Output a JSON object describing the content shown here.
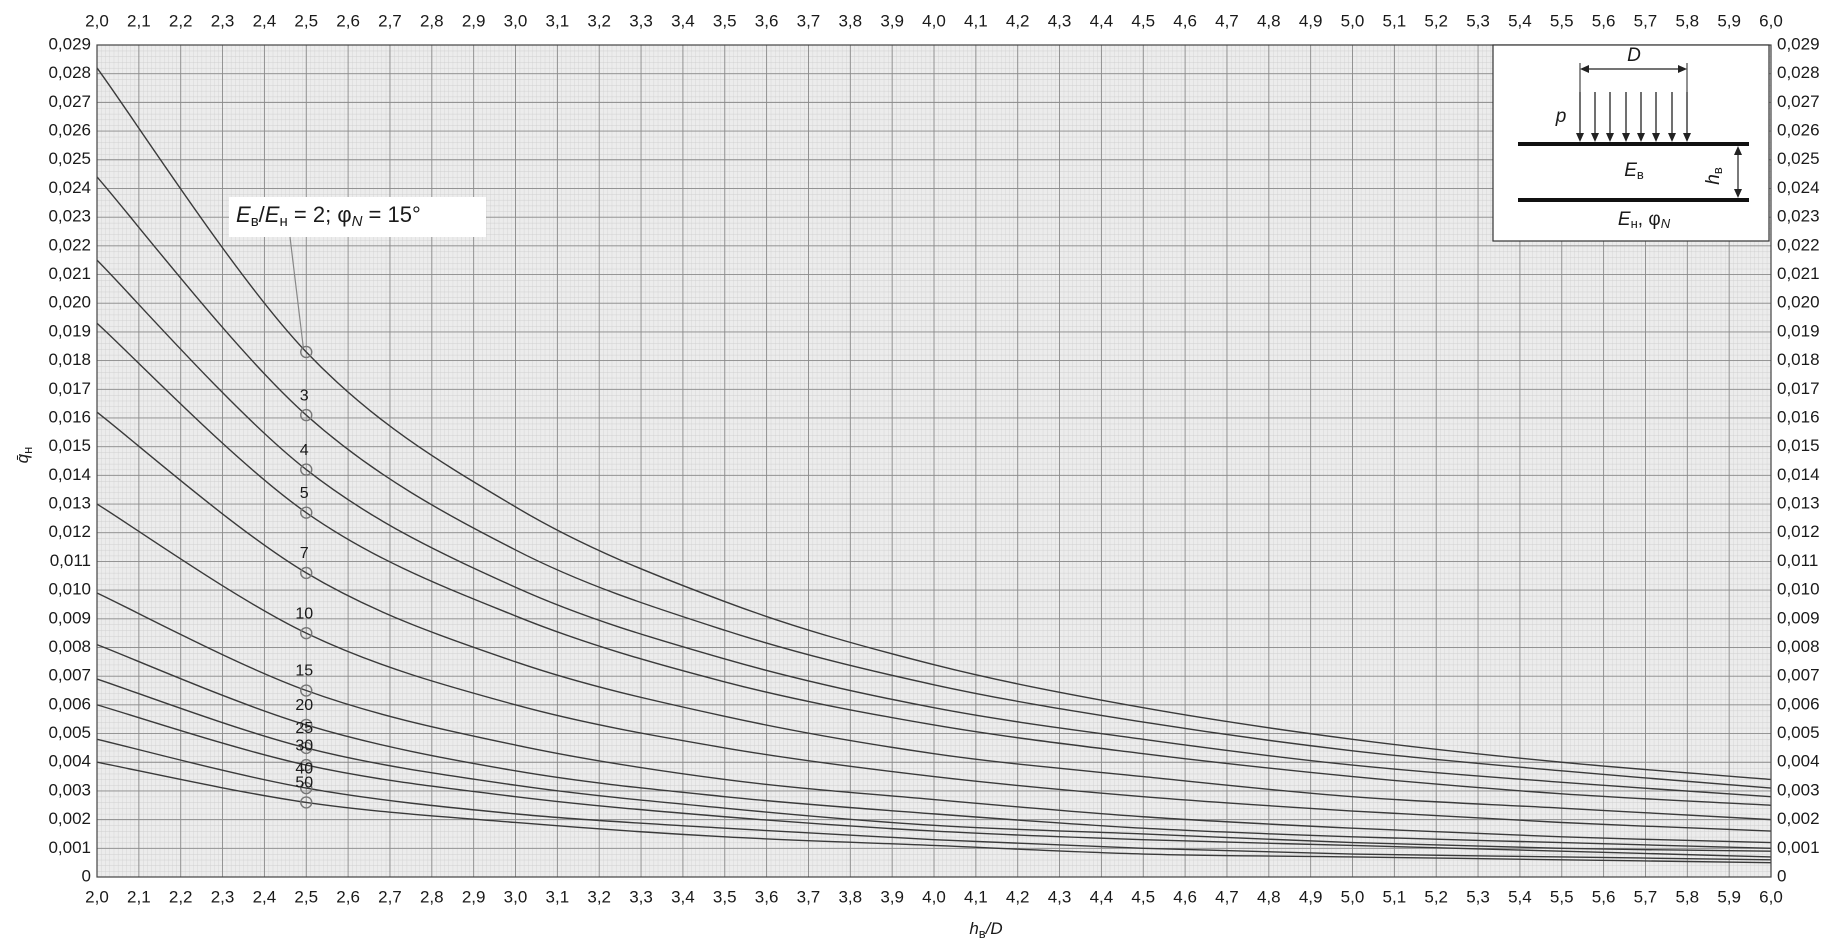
{
  "chart_data": {
    "type": "line",
    "grid": true,
    "x_label": [
      "h",
      "в",
      "/D"
    ],
    "y_label": [
      "q̄",
      "н"
    ],
    "annotation": {
      "parts": [
        "E",
        "в",
        "/",
        "E",
        "н",
        " = "
      ],
      "suffix": [
        "; φ",
        "N",
        " = 15°"
      ]
    },
    "diagram": {
      "width_label": "D",
      "load_label": "p",
      "upper_layer": [
        "E",
        "в"
      ],
      "thickness": [
        "h",
        "в"
      ],
      "lower_layer": [
        "E",
        "н",
        ", φ",
        "N"
      ]
    },
    "xlim": [
      2.0,
      6.0
    ],
    "ylim": [
      0,
      0.029
    ],
    "xticks": [
      {
        "value": 2.0,
        "label": "2,0"
      },
      {
        "value": 2.1,
        "label": "2,1"
      },
      {
        "value": 2.2,
        "label": "2,2"
      },
      {
        "value": 2.3,
        "label": "2,3"
      },
      {
        "value": 2.4,
        "label": "2,4"
      },
      {
        "value": 2.5,
        "label": "2,5"
      },
      {
        "value": 2.6,
        "label": "2,6"
      },
      {
        "value": 2.7,
        "label": "2,7"
      },
      {
        "value": 2.8,
        "label": "2,8"
      },
      {
        "value": 2.9,
        "label": "2,9"
      },
      {
        "value": 3.0,
        "label": "3,0"
      },
      {
        "value": 3.1,
        "label": "3,1"
      },
      {
        "value": 3.2,
        "label": "3,2"
      },
      {
        "value": 3.3,
        "label": "3,3"
      },
      {
        "value": 3.4,
        "label": "3,4"
      },
      {
        "value": 3.5,
        "label": "3,5"
      },
      {
        "value": 3.6,
        "label": "3,6"
      },
      {
        "value": 3.7,
        "label": "3,7"
      },
      {
        "value": 3.8,
        "label": "3,8"
      },
      {
        "value": 3.9,
        "label": "3,9"
      },
      {
        "value": 4.0,
        "label": "4,0"
      },
      {
        "value": 4.1,
        "label": "4,1"
      },
      {
        "value": 4.2,
        "label": "4,2"
      },
      {
        "value": 4.3,
        "label": "4,3"
      },
      {
        "value": 4.4,
        "label": "4,4"
      },
      {
        "value": 4.5,
        "label": "4,5"
      },
      {
        "value": 4.6,
        "label": "4,6"
      },
      {
        "value": 4.7,
        "label": "4,7"
      },
      {
        "value": 4.8,
        "label": "4,8"
      },
      {
        "value": 4.9,
        "label": "4,9"
      },
      {
        "value": 5.0,
        "label": "5,0"
      },
      {
        "value": 5.1,
        "label": "5,1"
      },
      {
        "value": 5.2,
        "label": "5,2"
      },
      {
        "value": 5.3,
        "label": "5,3"
      },
      {
        "value": 5.4,
        "label": "5,4"
      },
      {
        "value": 5.5,
        "label": "5,5"
      },
      {
        "value": 5.6,
        "label": "5,6"
      },
      {
        "value": 5.7,
        "label": "5,7"
      },
      {
        "value": 5.8,
        "label": "5,8"
      },
      {
        "value": 5.9,
        "label": "5,9"
      },
      {
        "value": 6.0,
        "label": "6,0"
      }
    ],
    "yticks": [
      0,
      {
        "value": 0.001,
        "label": "0,001"
      },
      {
        "value": 0.002,
        "label": "0,002"
      },
      {
        "value": 0.003,
        "label": "0,003"
      },
      {
        "value": 0.004,
        "label": "0,004"
      },
      {
        "value": 0.005,
        "label": "0,005"
      },
      {
        "value": 0.006,
        "label": "0,006"
      },
      {
        "value": 0.007,
        "label": "0,007"
      },
      {
        "value": 0.008,
        "label": "0,008"
      },
      {
        "value": 0.009,
        "label": "0,009"
      },
      {
        "value": 0.01,
        "label": "0,010"
      },
      {
        "value": 0.011,
        "label": "0,011"
      },
      {
        "value": 0.012,
        "label": "0,012"
      },
      {
        "value": 0.013,
        "label": "0,013"
      },
      {
        "value": 0.014,
        "label": "0,014"
      },
      {
        "value": 0.015,
        "label": "0,015"
      },
      {
        "value": 0.016,
        "label": "0,016"
      },
      {
        "value": 0.017,
        "label": "0,017"
      },
      {
        "value": 0.018,
        "label": "0,018"
      },
      {
        "value": 0.019,
        "label": "0,019"
      },
      {
        "value": 0.02,
        "label": "0,020"
      },
      {
        "value": 0.021,
        "label": "0,021"
      },
      {
        "value": 0.022,
        "label": "0,022"
      },
      {
        "value": 0.023,
        "label": "0,023"
      },
      {
        "value": 0.024,
        "label": "0,024"
      },
      {
        "value": 0.025,
        "label": "0,025"
      },
      {
        "value": 0.026,
        "label": "0,026"
      },
      {
        "value": 0.027,
        "label": "0,027"
      },
      {
        "value": 0.028,
        "label": "0,028"
      },
      {
        "value": 0.029,
        "label": "0,029"
      }
    ],
    "x": [
      2.0,
      2.5,
      3.0,
      3.5,
      4.0,
      4.5,
      5.0,
      5.5,
      6.0
    ],
    "series": [
      {
        "name": "2",
        "color": "#3a3a3a",
        "values": [
          0.0282,
          0.0183,
          0.0129,
          0.0096,
          0.0074,
          0.0059,
          0.0048,
          0.004,
          0.0034
        ]
      },
      {
        "name": "3",
        "color": "#3a3a3a",
        "values": [
          0.0244,
          0.0161,
          0.0114,
          0.0086,
          0.0067,
          0.0054,
          0.0044,
          0.0037,
          0.0031
        ]
      },
      {
        "name": "4",
        "color": "#3a3a3a",
        "values": [
          0.0215,
          0.0142,
          0.0101,
          0.0076,
          0.0059,
          0.0048,
          0.0039,
          0.0033,
          0.0028
        ]
      },
      {
        "name": "5",
        "color": "#3a3a3a",
        "values": [
          0.0193,
          0.0127,
          0.0091,
          0.0068,
          0.0053,
          0.0043,
          0.0035,
          0.0029,
          0.0025
        ]
      },
      {
        "name": "7",
        "color": "#3a3a3a",
        "values": [
          0.0162,
          0.0106,
          0.0075,
          0.0056,
          0.0043,
          0.0035,
          0.0028,
          0.0024,
          0.002
        ]
      },
      {
        "name": "10",
        "color": "#3a3a3a",
        "values": [
          0.013,
          0.0085,
          0.006,
          0.0045,
          0.0035,
          0.0028,
          0.0023,
          0.0019,
          0.0016
        ]
      },
      {
        "name": "15",
        "color": "#3a3a3a",
        "values": [
          0.0099,
          0.0065,
          0.0046,
          0.0034,
          0.0027,
          0.0021,
          0.0017,
          0.0014,
          0.0012
        ]
      },
      {
        "name": "20",
        "color": "#3a3a3a",
        "values": [
          0.0081,
          0.0053,
          0.0037,
          0.0028,
          0.0022,
          0.0017,
          0.0014,
          0.0012,
          0.001
        ]
      },
      {
        "name": "25",
        "color": "#3a3a3a",
        "values": [
          0.0069,
          0.0045,
          0.0032,
          0.0024,
          0.0018,
          0.0015,
          0.0012,
          0.001,
          0.0009
        ]
      },
      {
        "name": "30",
        "color": "#3a3a3a",
        "values": [
          0.006,
          0.0039,
          0.0028,
          0.0021,
          0.0016,
          0.0013,
          0.0011,
          0.0009,
          0.0007
        ]
      },
      {
        "name": "40",
        "color": "#3a3a3a",
        "values": [
          0.0048,
          0.0031,
          0.0022,
          0.0017,
          0.0013,
          0.001,
          0.0008,
          0.0007,
          0.0006
        ]
      },
      {
        "name": "50",
        "color": "#3a3a3a",
        "values": [
          0.004,
          0.0026,
          0.0019,
          0.0014,
          0.0011,
          0.0008,
          0.0007,
          0.0006,
          0.0005
        ]
      }
    ]
  }
}
